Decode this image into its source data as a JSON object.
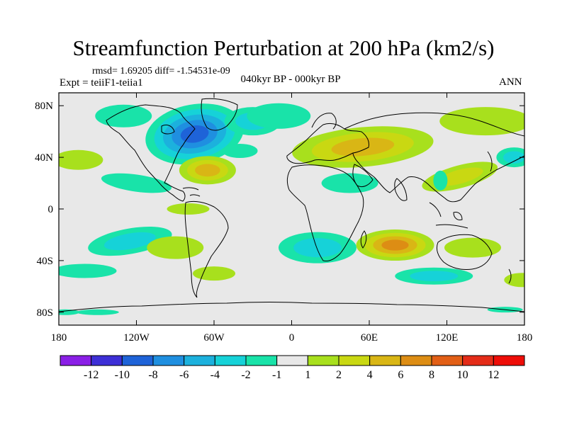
{
  "title": "Streamfunction Perturbation at 200 hPa (km2/s)",
  "stats": "rmsd= 1.69205 diff= -1.54531e-09",
  "experiment": "Expt = teiiF1-teiia1",
  "period": "040kyr BP - 000kyr BP",
  "season": "ANN",
  "lon_ticks": [
    "180",
    "120W",
    "60W",
    "0",
    "60E",
    "120E",
    "180"
  ],
  "lat_ticks": [
    "80N",
    "40N",
    "0",
    "40S",
    "80S"
  ],
  "colorbar": {
    "labels": [
      "-12",
      "-10",
      "-8",
      "-6",
      "-4",
      "-2",
      "-1",
      "1",
      "2",
      "4",
      "6",
      "8",
      "10",
      "12"
    ],
    "colors": [
      "#8a1fe6",
      "#3d2fd6",
      "#1e63d8",
      "#1f8fe0",
      "#1cb1dd",
      "#16d2d8",
      "#19e3a9",
      "#e8e8e8",
      "#a8e01d",
      "#c9d812",
      "#d9b615",
      "#dd8d14",
      "#e25f16",
      "#e42c18",
      "#ee0d08"
    ]
  },
  "field_levels": {
    "neg": {
      "-1": "#19e3a9",
      "-2": "#16d2d8",
      "-4": "#1cb1dd",
      "-6": "#1f8fe0",
      "-8": "#1e63d8"
    },
    "pos": {
      "1": "#a8e01d",
      "2": "#c9d812",
      "4": "#d9b615",
      "6": "#dd8d14"
    },
    "neutral": "#e8e8e8"
  }
}
